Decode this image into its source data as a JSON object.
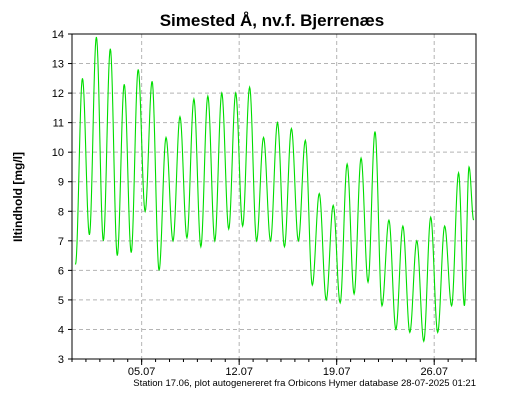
{
  "chart_data": {
    "type": "line",
    "title": "Simested Å, nv.f. Bjerrenæs",
    "xlabel": "",
    "ylabel": "Iltindhold [mg/l]",
    "ylim": [
      3,
      14
    ],
    "yticks": [
      3,
      4,
      5,
      6,
      7,
      8,
      9,
      10,
      11,
      12,
      13,
      14
    ],
    "xlim": [
      "2025-06-30",
      "2025-07-29"
    ],
    "xticks": [
      {
        "date": "2025-07-05",
        "label": "05.07"
      },
      {
        "date": "2025-07-12",
        "label": "12.07"
      },
      {
        "date": "2025-07-19",
        "label": "19.07"
      },
      {
        "date": "2025-07-26",
        "label": "26.07"
      }
    ],
    "grid": true,
    "line_color": "#00dd00",
    "series": [
      {
        "name": "",
        "points": [
          [
            "2025-06-30",
            6.2
          ],
          [
            "2025-06-30",
            12.5
          ],
          [
            "2025-07-01",
            7.2
          ],
          [
            "2025-07-01",
            13.9
          ],
          [
            "2025-07-02",
            7.0
          ],
          [
            "2025-07-02",
            13.5
          ],
          [
            "2025-07-03",
            6.5
          ],
          [
            "2025-07-03",
            12.3
          ],
          [
            "2025-07-04",
            6.6
          ],
          [
            "2025-07-04",
            12.8
          ],
          [
            "2025-07-05",
            8.0
          ],
          [
            "2025-07-05",
            12.4
          ],
          [
            "2025-07-06",
            6.0
          ],
          [
            "2025-07-06",
            10.5
          ],
          [
            "2025-07-07",
            7.0
          ],
          [
            "2025-07-07",
            11.2
          ],
          [
            "2025-07-08",
            7.1
          ],
          [
            "2025-07-08",
            11.8
          ],
          [
            "2025-07-09",
            6.8
          ],
          [
            "2025-07-09",
            11.9
          ],
          [
            "2025-07-10",
            7.0
          ],
          [
            "2025-07-10",
            12.0
          ],
          [
            "2025-07-11",
            7.4
          ],
          [
            "2025-07-11",
            12.0
          ],
          [
            "2025-07-12",
            7.5
          ],
          [
            "2025-07-12",
            12.2
          ],
          [
            "2025-07-13",
            7.0
          ],
          [
            "2025-07-13",
            10.5
          ],
          [
            "2025-07-14",
            7.0
          ],
          [
            "2025-07-14",
            11.0
          ],
          [
            "2025-07-15",
            6.8
          ],
          [
            "2025-07-15",
            10.8
          ],
          [
            "2025-07-16",
            7.0
          ],
          [
            "2025-07-16",
            10.4
          ],
          [
            "2025-07-17",
            5.5
          ],
          [
            "2025-07-17",
            8.6
          ],
          [
            "2025-07-18",
            5.0
          ],
          [
            "2025-07-18",
            8.2
          ],
          [
            "2025-07-19",
            4.9
          ],
          [
            "2025-07-19",
            9.6
          ],
          [
            "2025-07-20",
            5.2
          ],
          [
            "2025-07-20",
            9.8
          ],
          [
            "2025-07-21",
            5.6
          ],
          [
            "2025-07-21",
            10.7
          ],
          [
            "2025-07-22",
            4.8
          ],
          [
            "2025-07-22",
            7.7
          ],
          [
            "2025-07-23",
            4.0
          ],
          [
            "2025-07-23",
            7.5
          ],
          [
            "2025-07-24",
            3.9
          ],
          [
            "2025-07-24",
            7.0
          ],
          [
            "2025-07-25",
            3.6
          ],
          [
            "2025-07-25",
            7.8
          ],
          [
            "2025-07-26",
            3.9
          ],
          [
            "2025-07-26",
            7.5
          ],
          [
            "2025-07-27",
            4.8
          ],
          [
            "2025-07-27",
            9.3
          ],
          [
            "2025-07-28",
            4.8
          ],
          [
            "2025-07-28",
            9.5
          ],
          [
            "2025-07-28",
            7.7
          ]
        ]
      }
    ],
    "footer": "Station 17.06, plot autogenereret fra Orbicons Hymer database 28-07-2025 01:21"
  }
}
